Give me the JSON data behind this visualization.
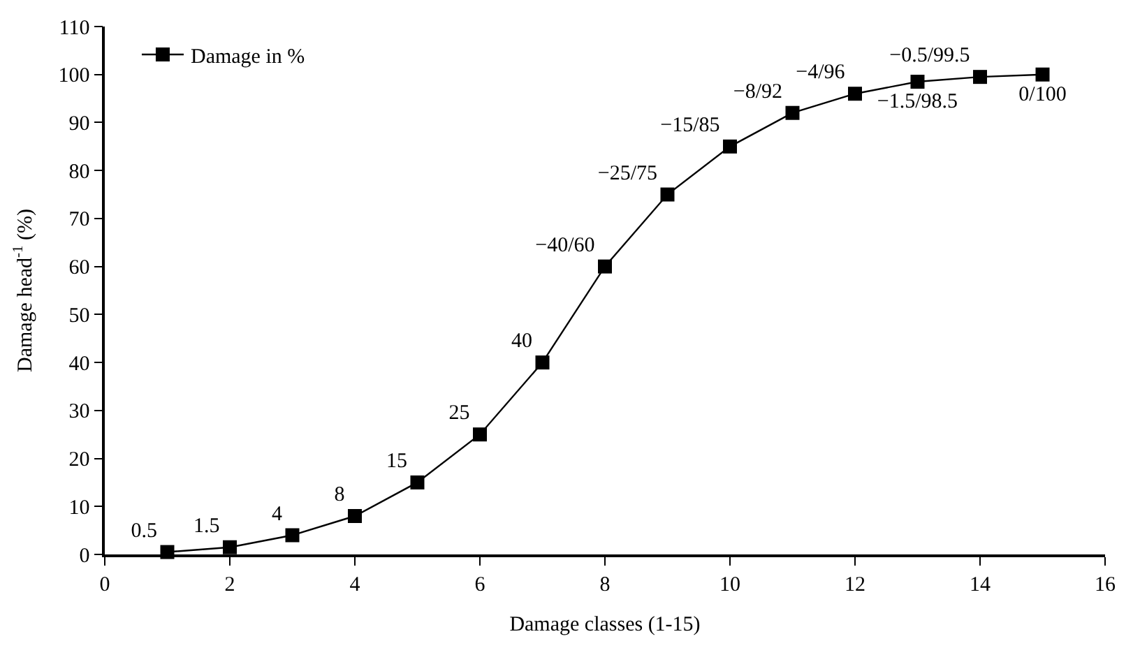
{
  "chart_data": {
    "type": "line",
    "xlabel": "Damage classes (1-15)",
    "ylabel": "Damage head$^{-1}$ (%)",
    "x": [
      1,
      2,
      3,
      4,
      5,
      6,
      7,
      8,
      9,
      10,
      11,
      12,
      13,
      14,
      15
    ],
    "series": [
      {
        "name": "Damage in %",
        "color": "#000000",
        "values": [
          0.5,
          1.5,
          4,
          8,
          15,
          25,
          40,
          60,
          75,
          85,
          92,
          96,
          98.5,
          99.5,
          100
        ],
        "value_labels": [
          "0.5",
          "1.5",
          "4",
          "8",
          "15",
          "25",
          "40",
          "−40/60",
          "−25/75",
          "−15/85",
          "−8/92",
          "−4/96",
          "−1.5/98.5",
          "−0.5/99.5",
          "0/100"
        ]
      }
    ],
    "xlim": [
      0,
      16
    ],
    "xticks": [
      0,
      2,
      4,
      6,
      8,
      10,
      12,
      14,
      16
    ],
    "ylim": [
      0,
      110
    ],
    "yticks": [
      0,
      10,
      20,
      30,
      40,
      50,
      60,
      70,
      80,
      90,
      100,
      110
    ],
    "marker": "square",
    "line_style": "solid",
    "legend": "top left"
  }
}
